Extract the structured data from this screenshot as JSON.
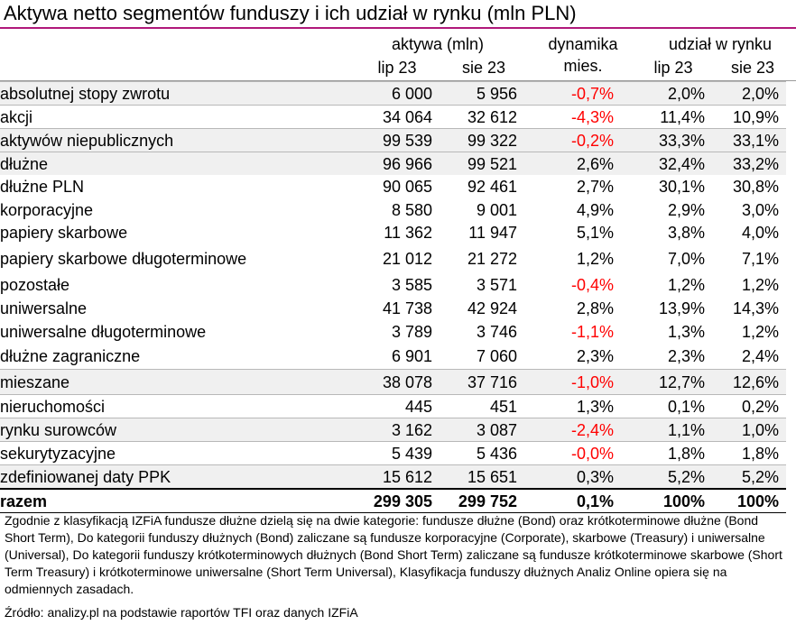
{
  "title": "Aktywa netto segmentów funduszy i ich udział w rynku (mln PLN)",
  "header": {
    "assets_group": "aktywa (mln)",
    "change_line1": "dynamika",
    "change_line2": "mies.",
    "share_group": "udział w rynku",
    "col_jul": "lip 23",
    "col_aug": "sie 23",
    "col_share_jul": "lip 23",
    "col_share_aug": "sie 23"
  },
  "rows": [
    {
      "name": "absolutnej stopy zwrotu",
      "jul": "6 000",
      "aug": "5 956",
      "change": "-0,7%",
      "share_jul": "2,0%",
      "share_aug": "2,0%"
    },
    {
      "name": "akcji",
      "jul": "34 064",
      "aug": "32 612",
      "change": "-4,3%",
      "share_jul": "11,4%",
      "share_aug": "10,9%"
    },
    {
      "name": "aktywów niepublicznych",
      "jul": "99 539",
      "aug": "99 322",
      "change": "-0,2%",
      "share_jul": "33,3%",
      "share_aug": "33,1%"
    },
    {
      "name": "dłużne",
      "jul": "96 966",
      "aug": "99 521",
      "change": "2,6%",
      "share_jul": "32,4%",
      "share_aug": "33,2%"
    },
    {
      "name": "dłużne PLN",
      "jul": "90 065",
      "aug": "92 461",
      "change": "2,7%",
      "share_jul": "30,1%",
      "share_aug": "30,8%"
    },
    {
      "name": "korporacyjne",
      "jul": "8 580",
      "aug": "9 001",
      "change": "4,9%",
      "share_jul": "2,9%",
      "share_aug": "3,0%"
    },
    {
      "name": "papiery skarbowe",
      "jul": "11 362",
      "aug": "11 947",
      "change": "5,1%",
      "share_jul": "3,8%",
      "share_aug": "4,0%"
    },
    {
      "name": "papiery skarbowe długoterminowe",
      "jul": "21 012",
      "aug": "21 272",
      "change": "1,2%",
      "share_jul": "7,0%",
      "share_aug": "7,1%"
    },
    {
      "name": "pozostałe",
      "jul": "3 585",
      "aug": "3 571",
      "change": "-0,4%",
      "share_jul": "1,2%",
      "share_aug": "1,2%"
    },
    {
      "name": "uniwersalne",
      "jul": "41 738",
      "aug": "42 924",
      "change": "2,8%",
      "share_jul": "13,9%",
      "share_aug": "14,3%"
    },
    {
      "name": "uniwersalne długoterminowe",
      "jul": "3 789",
      "aug": "3 746",
      "change": "-1,1%",
      "share_jul": "1,3%",
      "share_aug": "1,2%"
    },
    {
      "name": "dłużne zagraniczne",
      "jul": "6 901",
      "aug": "7 060",
      "change": "2,3%",
      "share_jul": "2,3%",
      "share_aug": "2,4%"
    },
    {
      "name": "mieszane",
      "jul": "38 078",
      "aug": "37 716",
      "change": "-1,0%",
      "share_jul": "12,7%",
      "share_aug": "12,6%"
    },
    {
      "name": "nieruchomości",
      "jul": "445",
      "aug": "451",
      "change": "1,3%",
      "share_jul": "0,1%",
      "share_aug": "0,2%"
    },
    {
      "name": "rynku surowców",
      "jul": "3 162",
      "aug": "3 087",
      "change": "-2,4%",
      "share_jul": "1,1%",
      "share_aug": "1,0%"
    },
    {
      "name": "sekurytyzacyjne",
      "jul": "5 439",
      "aug": "5 436",
      "change": "-0,0%",
      "share_jul": "1,8%",
      "share_aug": "1,8%"
    },
    {
      "name": "zdefiniowanej daty PPK",
      "jul": "15 612",
      "aug": "15 651",
      "change": "0,3%",
      "share_jul": "5,2%",
      "share_aug": "5,2%"
    }
  ],
  "total": {
    "name": "razem",
    "jul": "299 305",
    "aug": "299 752",
    "change": "0,1%",
    "share_jul": "100%",
    "share_aug": "100%"
  },
  "note": "Zgodnie z klasyfikacją IZFiA fundusze dłużne dzielą się na dwie kategorie: fundusze dłużne (Bond) oraz krótkoterminowe dłużne (Bond Short Term), Do kategorii funduszy dłużnych (Bond) zaliczane są fundusze korporacyjne (Corporate), skarbowe (Treasury) i uniwersalne (Universal), Do kategorii funduszy krótkoterminowych dłużnych (Bond Short Term) zaliczane są fundusze krótkoterminowe skarbowe (Short Term Treasury) i krótkoterminowe uniwersalne (Short Term Universal), Klasyfikacja funduszy dłużnych Analiz Online opiera się na odmiennych zasadach.",
  "source": "Źródło: analizy.pl na podstawie raportów TFI oraz danych IZFiA",
  "colors": {
    "negative": "#ff0000",
    "title_rule": "#b0187a",
    "row_shade": "#f0f0f0"
  }
}
